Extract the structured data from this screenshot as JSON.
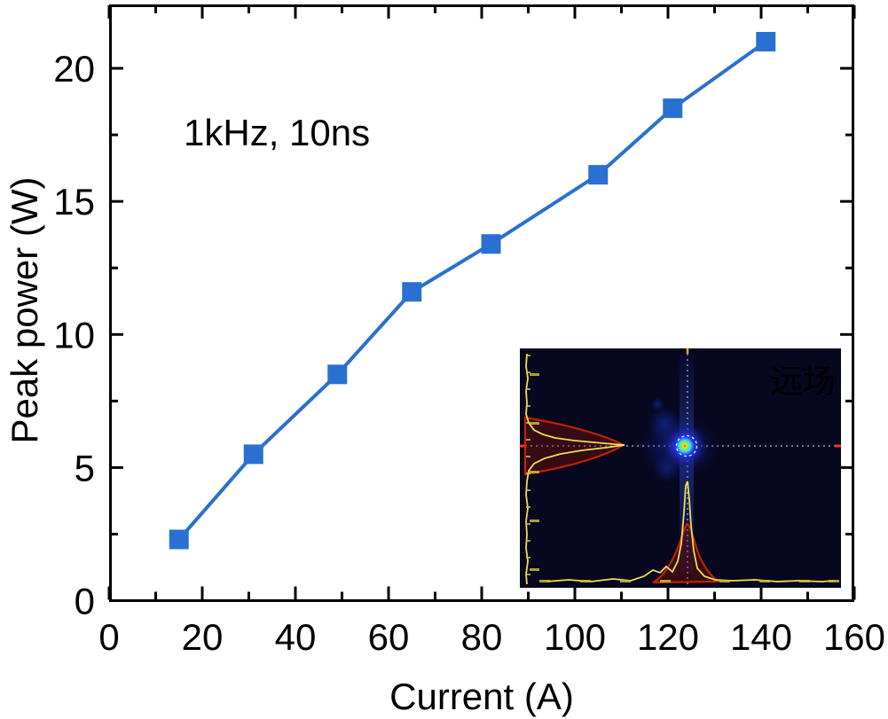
{
  "figure": {
    "xlabel": "Current (A)",
    "ylabel": "Peak power (W)",
    "annotation": "1kHz, 10ns",
    "inset_label": "远场"
  },
  "chart_data": {
    "type": "line",
    "title": "",
    "xlabel": "Current (A)",
    "ylabel": "Peak power (W)",
    "annotation": "1kHz, 10ns",
    "xlim": [
      0,
      160
    ],
    "ylim": [
      0,
      22.4
    ],
    "x_major_ticks": [
      0,
      20,
      40,
      60,
      80,
      100,
      120,
      140,
      160
    ],
    "x_minor_ticks": [
      10,
      30,
      50,
      70,
      90,
      110,
      130,
      150
    ],
    "y_major_ticks": [
      0,
      5,
      10,
      15,
      20
    ],
    "y_minor_ticks": [
      2.5,
      7.5,
      12.5,
      17.5
    ],
    "grid": false,
    "legend": null,
    "series": [
      {
        "name": "peak-power-vs-current",
        "marker": "square",
        "marker_size": 22,
        "color": "#2a70d2",
        "x": [
          15,
          31,
          49,
          65,
          82,
          105,
          121,
          141
        ],
        "y": [
          2.3,
          5.5,
          8.5,
          11.6,
          13.4,
          16.0,
          18.5,
          21.0
        ]
      }
    ],
    "inset": {
      "label": "远场",
      "type": "far-field-beam-profile-image",
      "background": "#07071f",
      "crosshair_color": "#ccd2ff",
      "profile_line_color": "#eedd55",
      "profile_fit_color": "#cc2200",
      "spot_core_colors": [
        "#dd2200",
        "#ffdd33",
        "#88ee44",
        "#33ddee",
        "#2233ee"
      ]
    }
  }
}
